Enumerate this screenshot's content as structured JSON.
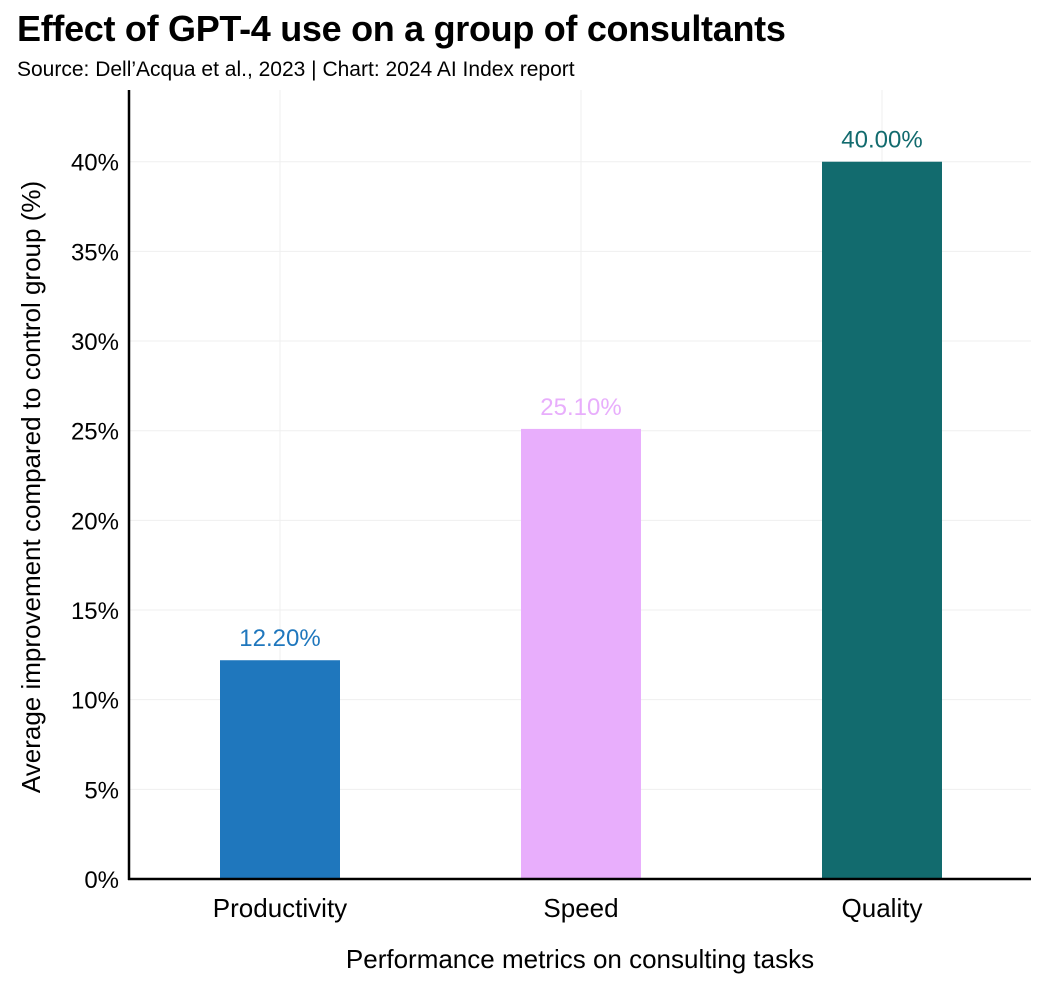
{
  "title": "Effect of GPT-4 use on a group of consultants",
  "subtitle": "Source: Dell’Acqua et al., 2023 | Chart: 2024 AI Index report",
  "chart_data": {
    "type": "bar",
    "categories": [
      "Productivity",
      "Speed",
      "Quality"
    ],
    "values": [
      12.2,
      25.1,
      40.0
    ],
    "value_labels": [
      "12.20%",
      "25.10%",
      "40.00%"
    ],
    "colors": [
      "#1f77bd",
      "#e8aefc",
      "#126b6e"
    ],
    "xlabel": "Performance metrics on consulting tasks",
    "ylabel": "Average improvement compared to control group (%)",
    "ylim": [
      0,
      44
    ],
    "yticks": [
      0,
      5,
      10,
      15,
      20,
      25,
      30,
      35,
      40
    ],
    "ytick_labels": [
      "0%",
      "5%",
      "10%",
      "15%",
      "20%",
      "25%",
      "30%",
      "35%",
      "40%"
    ],
    "grid": true,
    "legend": "none"
  }
}
